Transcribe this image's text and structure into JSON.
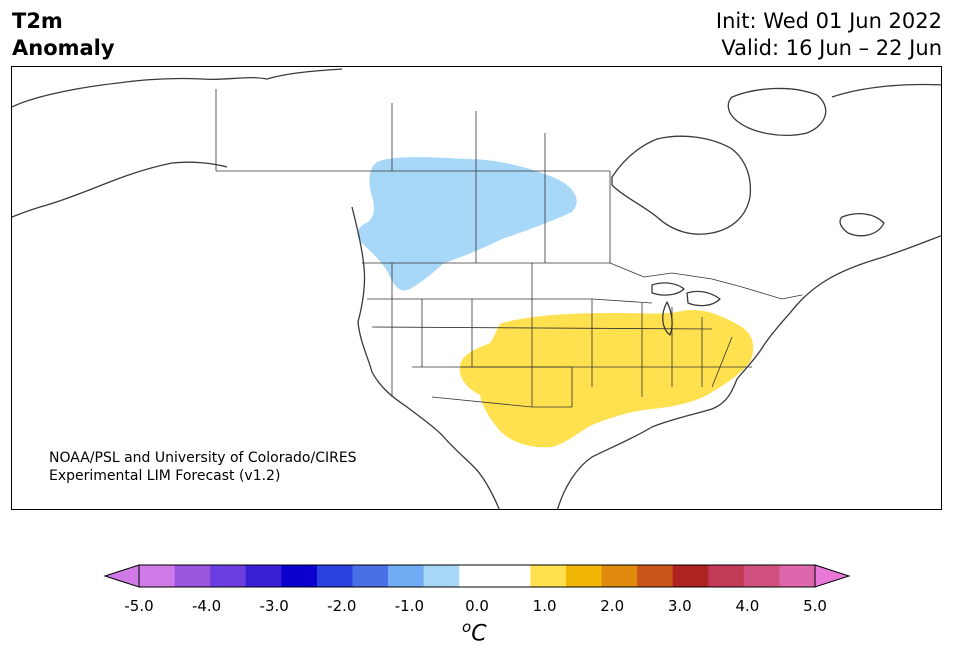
{
  "title": {
    "variable": "T2m",
    "subtitle": "Anomaly",
    "init": "Init: Wed 01 Jun 2022",
    "valid": "Valid: 16 Jun – 22 Jun"
  },
  "credit": {
    "line1": "NOAA/PSL and University of Colorado/CIRES",
    "line2": "Experimental LIM Forecast (v1.2)"
  },
  "map": {
    "region": "North America",
    "anomalies": [
      {
        "sign": "negative",
        "level": "-1.0 to -0.5",
        "color": "#a8d8f8",
        "area": "Canadian Prairies / Pacific Northwest"
      },
      {
        "sign": "positive",
        "level": "0.5 to 1.0",
        "color": "#ffe14f",
        "area": "Central and South-Central United States"
      }
    ]
  },
  "colorbar": {
    "ticks": [
      "-5.0",
      "-4.0",
      "-3.0",
      "-2.0",
      "-1.0",
      "0.0",
      "1.0",
      "2.0",
      "3.0",
      "4.0",
      "5.0"
    ],
    "colors": [
      "#d07ae8",
      "#9a55de",
      "#6a3ee0",
      "#3a20d4",
      "#0a00d0",
      "#2a40e0",
      "#4a70e8",
      "#72acf4",
      "#a8d8f8",
      "#ffffff",
      "#ffffff",
      "#ffe14f",
      "#f2b705",
      "#e08a0e",
      "#c8561a",
      "#ae2222",
      "#c23a56",
      "#d05080",
      "#de66ac"
    ],
    "under_color": "#d07ae8",
    "over_color": "#e679d8",
    "unit_base": "C",
    "unit_sup": "o"
  }
}
